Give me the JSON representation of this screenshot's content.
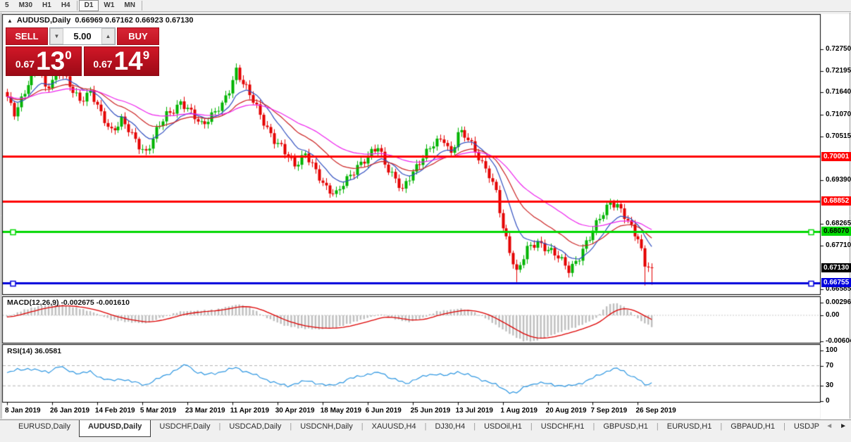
{
  "toolbar": {
    "timeframes": [
      "5",
      "M30",
      "H1",
      "H4",
      "D1",
      "W1",
      "MN"
    ],
    "active_timeframe": "D1"
  },
  "icons": {
    "collapse": "▲",
    "spinner_down": "▼",
    "spinner_up": "▲",
    "tab_scroll_left": "◄",
    "tab_scroll_right": "►"
  },
  "chart_header": {
    "symbol_title": "AUDUSD,Daily",
    "ohlc": "0.66969 0.67162 0.66923 0.67130"
  },
  "trade_panel": {
    "sell_label": "SELL",
    "buy_label": "BUY",
    "volume": "5.00",
    "sell_price_prefix": "0.67",
    "sell_price_big": "13",
    "sell_price_sup": "0",
    "buy_price_prefix": "0.67",
    "buy_price_big": "14",
    "buy_price_sup": "9"
  },
  "price_axis": {
    "ticks": [
      {
        "label": "0.72750",
        "value": 0.7275
      },
      {
        "label": "0.72195",
        "value": 0.72195
      },
      {
        "label": "0.71640",
        "value": 0.7164
      },
      {
        "label": "0.71070",
        "value": 0.7107
      },
      {
        "label": "0.70515",
        "value": 0.70515
      },
      {
        "label": "0.69390",
        "value": 0.6939
      },
      {
        "label": "0.68265",
        "value": 0.68265
      },
      {
        "label": "0.67710",
        "value": 0.6771
      },
      {
        "label": "0.66585",
        "value": 0.66585
      }
    ],
    "levels": [
      {
        "label": "0.70001",
        "value": 0.70001,
        "color": "#ff0000",
        "text": "#ffffff",
        "handles": false
      },
      {
        "label": "0.68852",
        "value": 0.68852,
        "color": "#ff0000",
        "text": "#ffffff",
        "handles": false
      },
      {
        "label": "0.68070",
        "value": 0.6807,
        "color": "#00d800",
        "text": "#000000",
        "handles": true
      },
      {
        "label": "0.66755",
        "value": 0.66755,
        "color": "#0000dc",
        "text": "#ffffff",
        "handles": true
      }
    ],
    "current_price": {
      "label": "0.67130",
      "value": 0.6713,
      "bg": "#000000",
      "text": "#ffffff"
    }
  },
  "macd_panel": {
    "label": "MACD(12,26,9) -0.002675 -0.001610",
    "axis": [
      {
        "label": "0.002968",
        "value": 0.002968
      },
      {
        "label": "0.00",
        "value": 0
      },
      {
        "label": "-0.006047",
        "value": -0.006047
      }
    ],
    "histogram_color": "#bfbfbf",
    "signal_color": "#dd0000"
  },
  "rsi_panel": {
    "label": "RSI(14) 36.0581",
    "axis": [
      {
        "label": "100",
        "value": 100
      },
      {
        "label": "70",
        "value": 70
      },
      {
        "label": "30",
        "value": 30
      },
      {
        "label": "0",
        "value": 0
      }
    ],
    "levels": [
      70,
      30
    ],
    "line_color": "#2e97e2"
  },
  "date_axis": {
    "labels": [
      "8 Jan 2019",
      "26 Jan 2019",
      "14 Feb 2019",
      "5 Mar 2019",
      "23 Mar 2019",
      "11 Apr 2019",
      "30 Apr 2019",
      "18 May 2019",
      "6 Jun 2019",
      "25 Jun 2019",
      "13 Jul 2019",
      "1 Aug 2019",
      "20 Aug 2019",
      "7 Sep 2019",
      "26 Sep 2019"
    ],
    "tick_bars": [
      0,
      13,
      26,
      39,
      52,
      65,
      78,
      91,
      104,
      117,
      130,
      143,
      156,
      169,
      182
    ]
  },
  "tabs": {
    "items": [
      "EURUSD,Daily",
      "AUDUSD,Daily",
      "USDCHF,Daily",
      "USDCAD,Daily",
      "USDCNH,Daily",
      "XAUUSD,H4",
      "DJ30,H4",
      "USDOil,H1",
      "USDCHF,H1",
      "GBPUSD,H1",
      "EURUSD,H1",
      "GBPAUD,H1",
      "USDJP"
    ],
    "active": "AUDUSD,Daily"
  },
  "chart_data": {
    "type": "candlestick",
    "symbol": "AUDUSD",
    "timeframe": "Daily",
    "bars": 187,
    "up_color": "#00b400",
    "down_color": "#e40000",
    "price_anchors": [
      [
        0,
        0.7145
      ],
      [
        2,
        0.7112
      ],
      [
        4,
        0.715
      ],
      [
        6,
        0.7188
      ],
      [
        9,
        0.7228
      ],
      [
        11,
        0.7178
      ],
      [
        13,
        0.7198
      ],
      [
        15,
        0.7218
      ],
      [
        17,
        0.7192
      ],
      [
        19,
        0.7167
      ],
      [
        21,
        0.7148
      ],
      [
        24,
        0.7165
      ],
      [
        27,
        0.7105
      ],
      [
        30,
        0.7068
      ],
      [
        33,
        0.7092
      ],
      [
        36,
        0.7052
      ],
      [
        38,
        0.703
      ],
      [
        40,
        0.7012
      ],
      [
        43,
        0.7062
      ],
      [
        46,
        0.7108
      ],
      [
        50,
        0.7138
      ],
      [
        53,
        0.7108
      ],
      [
        56,
        0.7085
      ],
      [
        59,
        0.7105
      ],
      [
        62,
        0.7128
      ],
      [
        64,
        0.7172
      ],
      [
        66,
        0.7225
      ],
      [
        68,
        0.7188
      ],
      [
        71,
        0.714
      ],
      [
        74,
        0.7092
      ],
      [
        77,
        0.704
      ],
      [
        80,
        0.7008
      ],
      [
        83,
        0.6982
      ],
      [
        86,
        0.7005
      ],
      [
        89,
        0.6958
      ],
      [
        92,
        0.6922
      ],
      [
        95,
        0.6902
      ],
      [
        98,
        0.6938
      ],
      [
        101,
        0.6978
      ],
      [
        104,
        0.6998
      ],
      [
        107,
        0.7022
      ],
      [
        109,
        0.6985
      ],
      [
        112,
        0.6942
      ],
      [
        114,
        0.6908
      ],
      [
        117,
        0.6962
      ],
      [
        120,
        0.7002
      ],
      [
        123,
        0.7028
      ],
      [
        126,
        0.7045
      ],
      [
        128,
        0.7008
      ],
      [
        130,
        0.7062
      ],
      [
        133,
        0.7042
      ],
      [
        136,
        0.7002
      ],
      [
        139,
        0.6952
      ],
      [
        141,
        0.6902
      ],
      [
        143,
        0.6815
      ],
      [
        145,
        0.6762
      ],
      [
        147,
        0.6702
      ],
      [
        150,
        0.6758
      ],
      [
        153,
        0.6782
      ],
      [
        156,
        0.6762
      ],
      [
        159,
        0.6738
      ],
      [
        162,
        0.6712
      ],
      [
        165,
        0.6742
      ],
      [
        168,
        0.6788
      ],
      [
        171,
        0.6848
      ],
      [
        174,
        0.6882
      ],
      [
        177,
        0.6858
      ],
      [
        180,
        0.6822
      ],
      [
        182,
        0.6792
      ],
      [
        184,
        0.6718
      ],
      [
        186,
        0.6713
      ]
    ],
    "wick_lows": {
      "40": 0.7003,
      "147": 0.6677,
      "184": 0.6668,
      "186": 0.667
    },
    "last_close": 0.6713,
    "moving_averages": [
      {
        "period": 10,
        "color": "#2f4ec0"
      },
      {
        "period": 22,
        "color": "#cc2222"
      },
      {
        "period": 42,
        "color": "#ee22ee"
      }
    ],
    "macd_anchors": [
      [
        0,
        -0.0004
      ],
      [
        5,
        0.0013
      ],
      [
        10,
        0.0023
      ],
      [
        15,
        0.0026
      ],
      [
        20,
        0.0018
      ],
      [
        25,
        0.0007
      ],
      [
        30,
        -0.001
      ],
      [
        35,
        -0.0016
      ],
      [
        40,
        -0.0019
      ],
      [
        45,
        -0.0004
      ],
      [
        50,
        0.0009
      ],
      [
        55,
        0.0011
      ],
      [
        60,
        0.0013
      ],
      [
        64,
        0.0021
      ],
      [
        67,
        0.0026
      ],
      [
        71,
        0.0014
      ],
      [
        75,
        -0.0006
      ],
      [
        80,
        -0.0024
      ],
      [
        85,
        -0.0031
      ],
      [
        90,
        -0.0033
      ],
      [
        95,
        -0.0029
      ],
      [
        100,
        -0.0016
      ],
      [
        104,
        -0.0006
      ],
      [
        108,
        0.0003
      ],
      [
        112,
        -0.0009
      ],
      [
        116,
        -0.0016
      ],
      [
        120,
        -0.0006
      ],
      [
        124,
        0.0009
      ],
      [
        128,
        0.0013
      ],
      [
        131,
        0.0016
      ],
      [
        134,
        0.001
      ],
      [
        138,
        -0.0006
      ],
      [
        142,
        -0.0028
      ],
      [
        146,
        -0.0048
      ],
      [
        149,
        -0.006
      ],
      [
        152,
        -0.0061
      ],
      [
        156,
        -0.005
      ],
      [
        160,
        -0.0038
      ],
      [
        164,
        -0.0028
      ],
      [
        167,
        -0.0018
      ],
      [
        170,
        -0.0006
      ],
      [
        173,
        0.0022
      ],
      [
        175,
        0.0029
      ],
      [
        177,
        0.0025
      ],
      [
        179,
        0.0014
      ],
      [
        181,
        0.0
      ],
      [
        183,
        -0.0014
      ],
      [
        186,
        -0.002675
      ]
    ],
    "rsi_anchors": [
      [
        0,
        55
      ],
      [
        3,
        62
      ],
      [
        6,
        64
      ],
      [
        9,
        60
      ],
      [
        12,
        58
      ],
      [
        15,
        68
      ],
      [
        18,
        60
      ],
      [
        21,
        54
      ],
      [
        24,
        58
      ],
      [
        27,
        46
      ],
      [
        30,
        40
      ],
      [
        33,
        44
      ],
      [
        36,
        38
      ],
      [
        40,
        32
      ],
      [
        43,
        42
      ],
      [
        46,
        52
      ],
      [
        50,
        66
      ],
      [
        52,
        72
      ],
      [
        54,
        60
      ],
      [
        57,
        52
      ],
      [
        60,
        55
      ],
      [
        63,
        60
      ],
      [
        66,
        66
      ],
      [
        69,
        58
      ],
      [
        72,
        50
      ],
      [
        75,
        42
      ],
      [
        78,
        34
      ],
      [
        81,
        30
      ],
      [
        84,
        36
      ],
      [
        87,
        40
      ],
      [
        90,
        34
      ],
      [
        93,
        30
      ],
      [
        96,
        36
      ],
      [
        99,
        44
      ],
      [
        102,
        50
      ],
      [
        105,
        54
      ],
      [
        108,
        56
      ],
      [
        110,
        48
      ],
      [
        113,
        40
      ],
      [
        115,
        34
      ],
      [
        118,
        44
      ],
      [
        121,
        50
      ],
      [
        124,
        54
      ],
      [
        127,
        50
      ],
      [
        130,
        58
      ],
      [
        133,
        52
      ],
      [
        136,
        44
      ],
      [
        139,
        38
      ],
      [
        141,
        32
      ],
      [
        143,
        24
      ],
      [
        145,
        18
      ],
      [
        147,
        16
      ],
      [
        150,
        30
      ],
      [
        153,
        36
      ],
      [
        156,
        34
      ],
      [
        159,
        31
      ],
      [
        162,
        29
      ],
      [
        165,
        34
      ],
      [
        168,
        42
      ],
      [
        171,
        52
      ],
      [
        174,
        62
      ],
      [
        176,
        64
      ],
      [
        178,
        58
      ],
      [
        180,
        50
      ],
      [
        182,
        44
      ],
      [
        184,
        31
      ],
      [
        186,
        36.06
      ]
    ]
  }
}
